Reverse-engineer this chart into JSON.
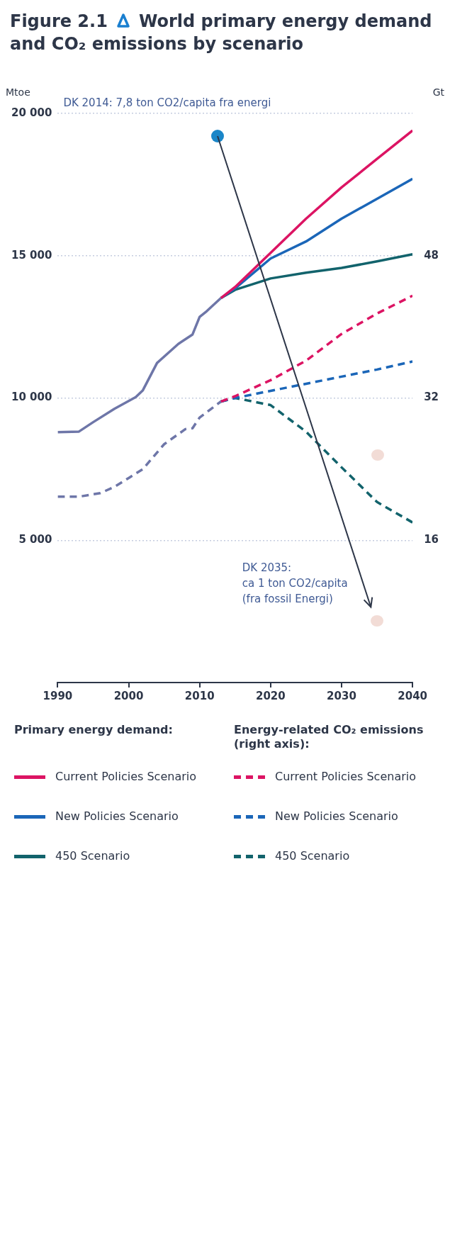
{
  "chart_data": {
    "type": "line",
    "title": "World primary energy demand and CO₂ emissions by scenario",
    "ylabel": "Mtoe",
    "y2label": "Gt",
    "annotations": [
      "Figure 2.1",
      "Primary energy demand:",
      "Energy-related CO₂ emissions (right axis):",
      "DK 2014: 7,8 ton CO2/capita fra energi",
      "DK 2035:\nca 1 ton CO2/capita\n(fra fossil Energi)"
    ],
    "xlim": [
      1990,
      2040
    ],
    "xticks": [
      1990,
      2000,
      2010,
      2020,
      2030,
      2040
    ],
    "ylim": [
      0,
      20000
    ],
    "yticks": [
      {
        "value": 5000,
        "label": "5 000"
      },
      {
        "value": 10000,
        "label": "10 000"
      },
      {
        "value": 15000,
        "label": "15 000"
      },
      {
        "value": 20000,
        "label": "20 000"
      }
    ],
    "y2lim": [
      0,
      64
    ],
    "y2ticks": [
      16,
      32,
      48
    ],
    "grid": "y",
    "legend": "bottom",
    "marker": "none",
    "series": [
      {
        "color": "#6e76a8",
        "line_style": "solid",
        "x": [
          1990,
          1993,
          1995,
          1998,
          2001,
          2002,
          2003,
          2004,
          2007,
          2009,
          2010,
          2011,
          2013
        ],
        "values": [
          8800,
          8820,
          9150,
          9620,
          10030,
          10270,
          10750,
          11230,
          11900,
          12230,
          12850,
          13050,
          13510
        ]
      },
      {
        "name": "Current Policies Scenario",
        "color": "#dc1463",
        "line_style": "solid",
        "x": [
          2013,
          2015,
          2020,
          2025,
          2030,
          2035,
          2040
        ],
        "values": [
          13510,
          13900,
          15100,
          16300,
          17400,
          18400,
          19400
        ]
      },
      {
        "name": "New Policies Scenario",
        "color": "#1b66b8",
        "line_style": "solid",
        "x": [
          2013,
          2015,
          2020,
          2025,
          2030,
          2035,
          2040
        ],
        "values": [
          13510,
          13850,
          14900,
          15500,
          16300,
          17000,
          17700
        ]
      },
      {
        "name": "450 Scenario",
        "color": "#12636c",
        "line_style": "solid",
        "x": [
          2013,
          2015,
          2020,
          2025,
          2030,
          2035,
          2040
        ],
        "values": [
          13510,
          13800,
          14200,
          14400,
          14570,
          14800,
          15050
        ]
      },
      {
        "color": "#6e76a8",
        "line_style": "dashed",
        "axis": "y2",
        "x": [
          1990,
          1993,
          1996,
          1998,
          2000,
          2002,
          2005,
          2008,
          2009,
          2010,
          2012,
          2013
        ],
        "values": [
          20.9,
          20.9,
          21.3,
          22.0,
          23.0,
          24.0,
          26.8,
          28.5,
          28.6,
          29.8,
          31.0,
          31.6
        ]
      },
      {
        "name": "Current Policies Scenario",
        "color": "#dc1463",
        "line_style": "dashed",
        "axis": "y2",
        "x": [
          2013,
          2015,
          2020,
          2025,
          2030,
          2035,
          2040
        ],
        "values": [
          31.6,
          32.2,
          34.0,
          36.2,
          39.2,
          41.5,
          43.5
        ]
      },
      {
        "name": "New Policies Scenario",
        "color": "#1b66b8",
        "line_style": "dashed",
        "axis": "y2",
        "x": [
          2013,
          2015,
          2020,
          2025,
          2030,
          2035,
          2040
        ],
        "values": [
          31.6,
          32.0,
          32.8,
          33.6,
          34.4,
          35.2,
          36.1
        ]
      },
      {
        "name": "450 Scenario",
        "color": "#12636c",
        "line_style": "dashed",
        "axis": "y2",
        "x": [
          2013,
          2015,
          2020,
          2025,
          2030,
          2035,
          2040
        ],
        "values": [
          31.6,
          32.0,
          31.2,
          28.2,
          24.2,
          20.3,
          18.0
        ]
      }
    ]
  }
}
